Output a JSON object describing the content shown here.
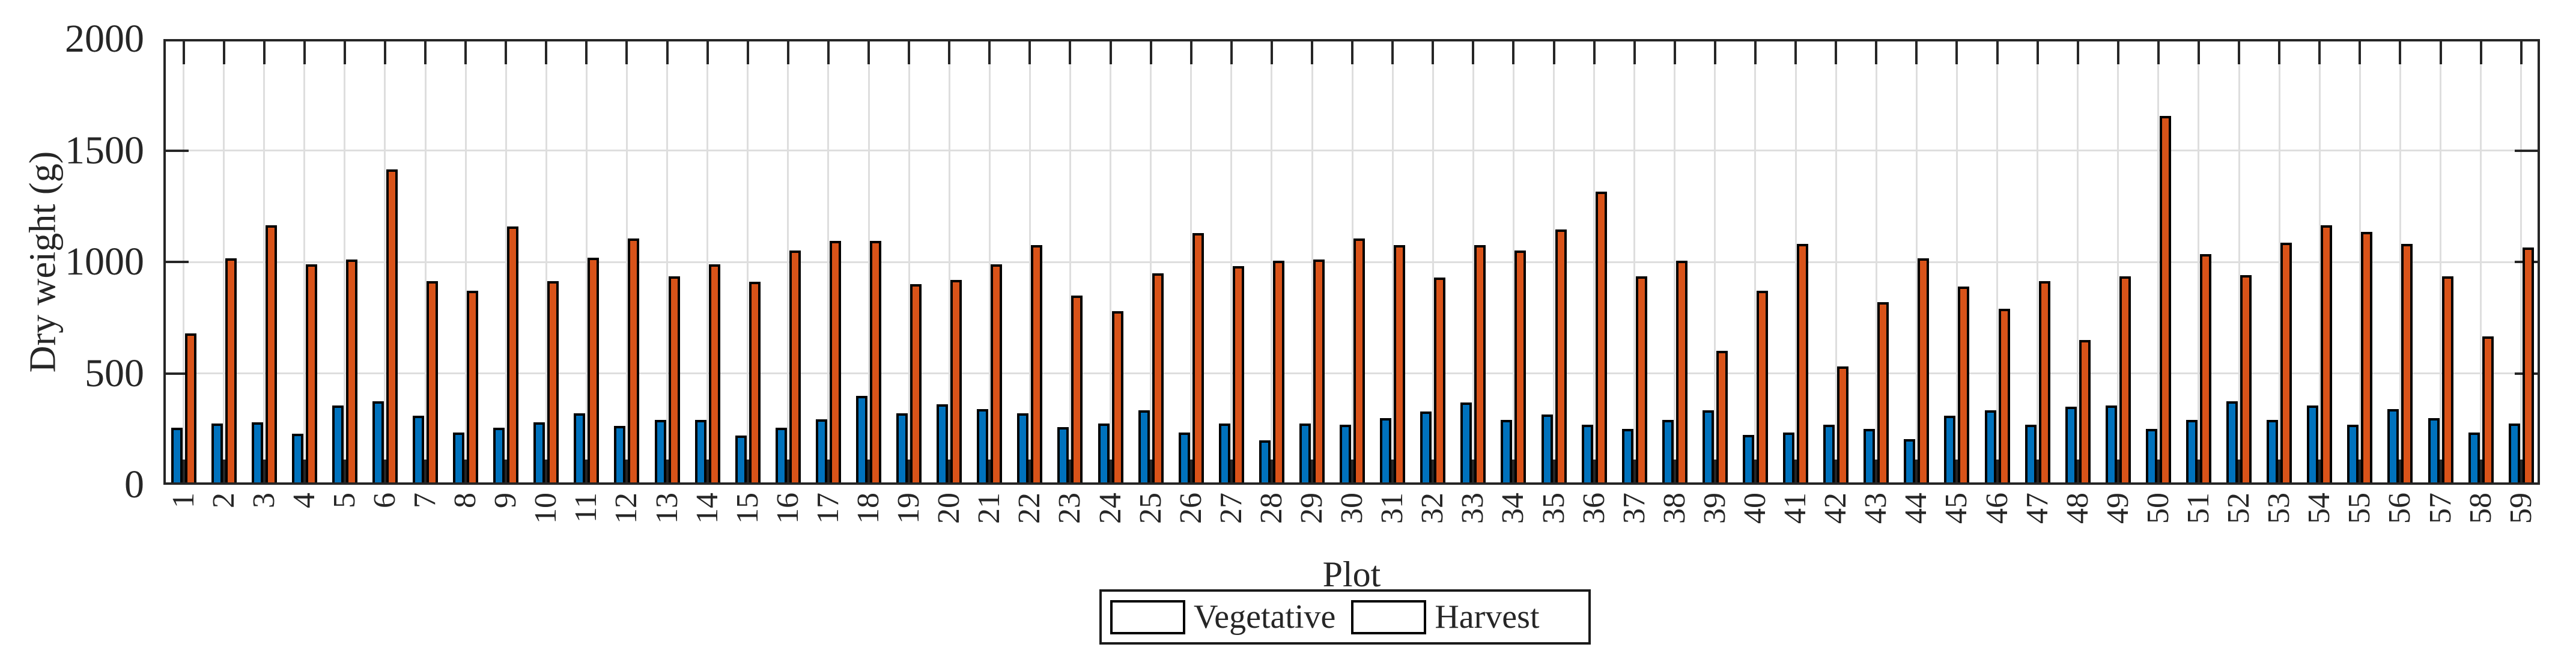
{
  "chart_data": {
    "type": "bar",
    "title": "",
    "xlabel": "Plot",
    "ylabel": "Dry weight (g)",
    "ylim": [
      0,
      2000
    ],
    "yticks": [
      0,
      500,
      1000,
      1500,
      2000
    ],
    "ytick_labels": [
      "0",
      "500",
      "1000",
      "1500",
      "2000"
    ],
    "grid": true,
    "legend_position": "bottom-center",
    "categories": [
      "1",
      "2",
      "3",
      "4",
      "5",
      "6",
      "7",
      "8",
      "9",
      "10",
      "11",
      "12",
      "13",
      "14",
      "15",
      "16",
      "17",
      "18",
      "19",
      "20",
      "21",
      "22",
      "23",
      "24",
      "25",
      "26",
      "27",
      "28",
      "29",
      "30",
      "31",
      "32",
      "33",
      "34",
      "35",
      "36",
      "37",
      "38",
      "39",
      "40",
      "41",
      "42",
      "43",
      "44",
      "45",
      "46",
      "47",
      "48",
      "49",
      "50",
      "51",
      "52",
      "53",
      "54",
      "55",
      "56",
      "57",
      "58",
      "59"
    ],
    "series": [
      {
        "name": "Vegetative",
        "color": "#0072BD",
        "values": [
          255,
          275,
          280,
          230,
          355,
          375,
          310,
          235,
          255,
          280,
          320,
          265,
          290,
          290,
          220,
          255,
          295,
          400,
          320,
          360,
          340,
          320,
          260,
          275,
          335,
          235,
          275,
          200,
          275,
          270,
          300,
          330,
          370,
          290,
          315,
          270,
          250,
          290,
          335,
          225,
          235,
          270,
          250,
          205,
          310,
          335,
          270,
          350,
          355,
          250,
          290,
          375,
          290,
          355,
          270,
          340,
          300,
          235,
          275
        ]
      },
      {
        "name": "Harvest",
        "color": "#D95319",
        "values": [
          680,
          1015,
          1165,
          990,
          1010,
          1415,
          915,
          870,
          1160,
          915,
          1020,
          1105,
          935,
          990,
          910,
          1050,
          1095,
          1095,
          900,
          920,
          990,
          1075,
          850,
          780,
          950,
          1130,
          980,
          1005,
          1010,
          1105,
          1075,
          930,
          1075,
          1050,
          1145,
          1315,
          935,
          1005,
          600,
          870,
          1080,
          530,
          820,
          1015,
          890,
          790,
          915,
          650,
          935,
          1655,
          1035,
          940,
          1085,
          1165,
          1135,
          1080,
          935,
          665,
          1065
        ]
      }
    ],
    "colors": {
      "grid": "#DEDEDE",
      "axis": "#262626",
      "bar_edge": "#000000",
      "background": "#FFFFFF"
    }
  }
}
